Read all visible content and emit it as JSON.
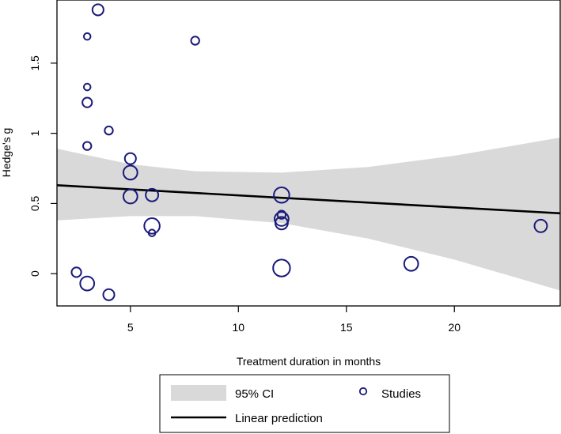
{
  "chart_data": {
    "type": "scatter",
    "title": "",
    "xlabel": "Treatment duration in months",
    "ylabel": "Hedge's g",
    "xlim": [
      1.6,
      24.9
    ],
    "ylim": [
      -0.23,
      1.95
    ],
    "x_ticks": [
      5,
      10,
      15,
      20
    ],
    "x_tick_labels": [
      "5",
      "10",
      "15",
      "20"
    ],
    "y_ticks": [
      0,
      0.5,
      1,
      1.5
    ],
    "y_tick_labels": [
      "0",
      "0.5",
      "1",
      "1.5"
    ],
    "grid": false,
    "legend_position": "bottom",
    "colors": {
      "points": "#1a1a7a",
      "ci_band": "#d9d9d9",
      "line": "#000000"
    },
    "series": [
      {
        "name": "Studies",
        "type": "scatter",
        "x": [
          3.5,
          3,
          8,
          3,
          3,
          4,
          3,
          5,
          5,
          6,
          5,
          12,
          12,
          12,
          12,
          6,
          6,
          24,
          18,
          12,
          2.5,
          3,
          4
        ],
        "y": [
          1.88,
          1.69,
          1.66,
          1.33,
          1.22,
          1.02,
          0.91,
          0.82,
          0.72,
          0.56,
          0.55,
          0.56,
          0.42,
          0.39,
          0.36,
          0.34,
          0.29,
          0.34,
          0.07,
          0.04,
          0.01,
          -0.07,
          -0.15
        ],
        "weight": [
          6,
          3,
          4,
          3,
          5,
          4,
          4,
          6,
          8,
          7,
          8,
          9,
          4,
          8,
          7,
          9,
          3,
          7,
          8,
          10,
          5,
          8,
          6
        ]
      },
      {
        "name": "Linear prediction",
        "type": "line",
        "x": [
          1.6,
          24.9
        ],
        "y": [
          0.63,
          0.43
        ]
      },
      {
        "name": "95% CI",
        "type": "area",
        "x": [
          1.6,
          5,
          8,
          12,
          16,
          20,
          24.9
        ],
        "upper": [
          0.89,
          0.78,
          0.73,
          0.72,
          0.76,
          0.84,
          0.97
        ],
        "lower": [
          0.38,
          0.41,
          0.41,
          0.36,
          0.25,
          0.1,
          -0.12
        ]
      }
    ],
    "legend": {
      "ci_label": "95% CI",
      "studies_label": "Studies",
      "line_label": "Linear prediction"
    }
  }
}
